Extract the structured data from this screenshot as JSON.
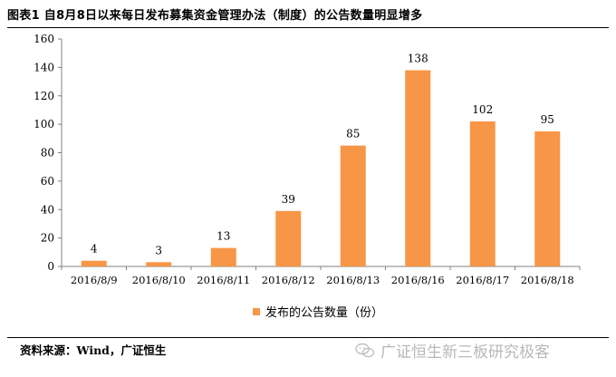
{
  "title": "图表1 自8月8日以来每日发布募集资金管理办法（制度）的公告数量明显增多",
  "source": "资料来源：Wind，广证恒生",
  "watermark": "广证恒生新三板研究极客",
  "colors": {
    "bar": "#F79646",
    "axis": "#808080"
  },
  "chart_data": {
    "type": "bar",
    "title": "图表1 自8月8日以来每日发布募集资金管理办法（制度）的公告数量明显增多",
    "categories": [
      "2016/8/9",
      "2016/8/10",
      "2016/8/11",
      "2016/8/12",
      "2016/8/13",
      "2016/8/16",
      "2016/8/17",
      "2016/8/18"
    ],
    "series": [
      {
        "name": "发布的公告数量（份）",
        "values": [
          4,
          3,
          13,
          39,
          85,
          138,
          102,
          95
        ]
      }
    ],
    "yticks": [
      0,
      20,
      40,
      60,
      80,
      100,
      120,
      140,
      160
    ],
    "ylim": [
      0,
      160
    ],
    "xlabel": "",
    "ylabel": "",
    "grid": false,
    "legend_position": "bottom",
    "data_labels": true
  }
}
